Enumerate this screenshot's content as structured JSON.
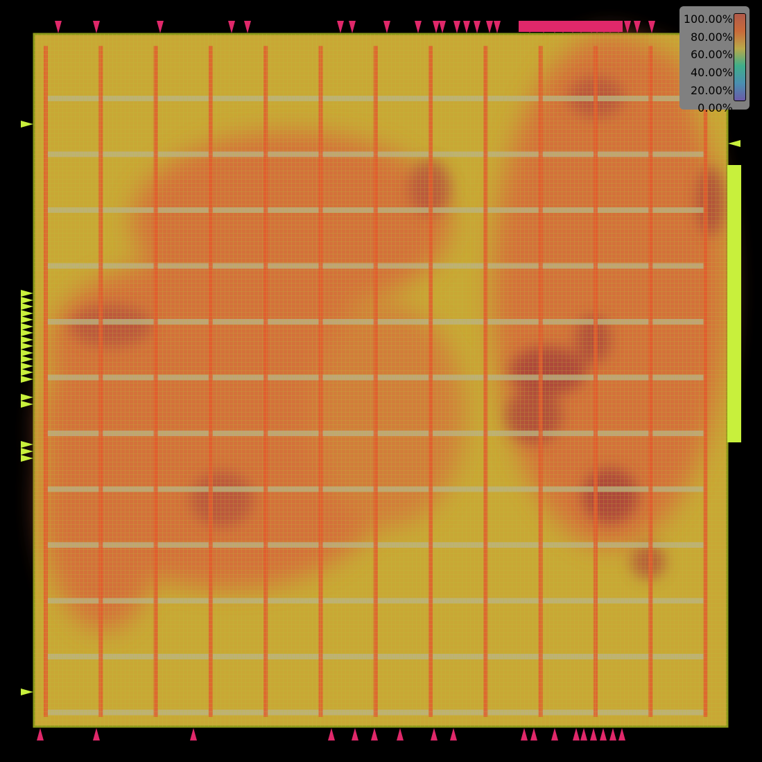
{
  "legend": {
    "labels": [
      "100.00%",
      "80.00%",
      "60.00%",
      "40.00%",
      "20.00%",
      "0.00%"
    ],
    "gradient": [
      "#b05a4a",
      "#c86a3a",
      "#b9a94a",
      "#3fae8a",
      "#4a8fb0",
      "#6a5aa8"
    ]
  },
  "colors": {
    "background": "#000000",
    "die_border": "#8c9a1a",
    "grid_line": "#b7c23a",
    "base_fill": "#c9a735",
    "hot_fill": "#d7683a",
    "hotspot": "#a23a3a",
    "stripe_v": "#e25a2e",
    "stripe_h": "#b9b48a",
    "pin_magenta": "#e0286a",
    "pin_lime": "#c8f03c"
  },
  "icons": {
    "pin_top": "pin-triangle-down-icon",
    "pin_bottom": "pin-triangle-up-icon",
    "pin_left": "pin-triangle-right-icon",
    "pin_right": "pin-triangle-left-icon"
  }
}
